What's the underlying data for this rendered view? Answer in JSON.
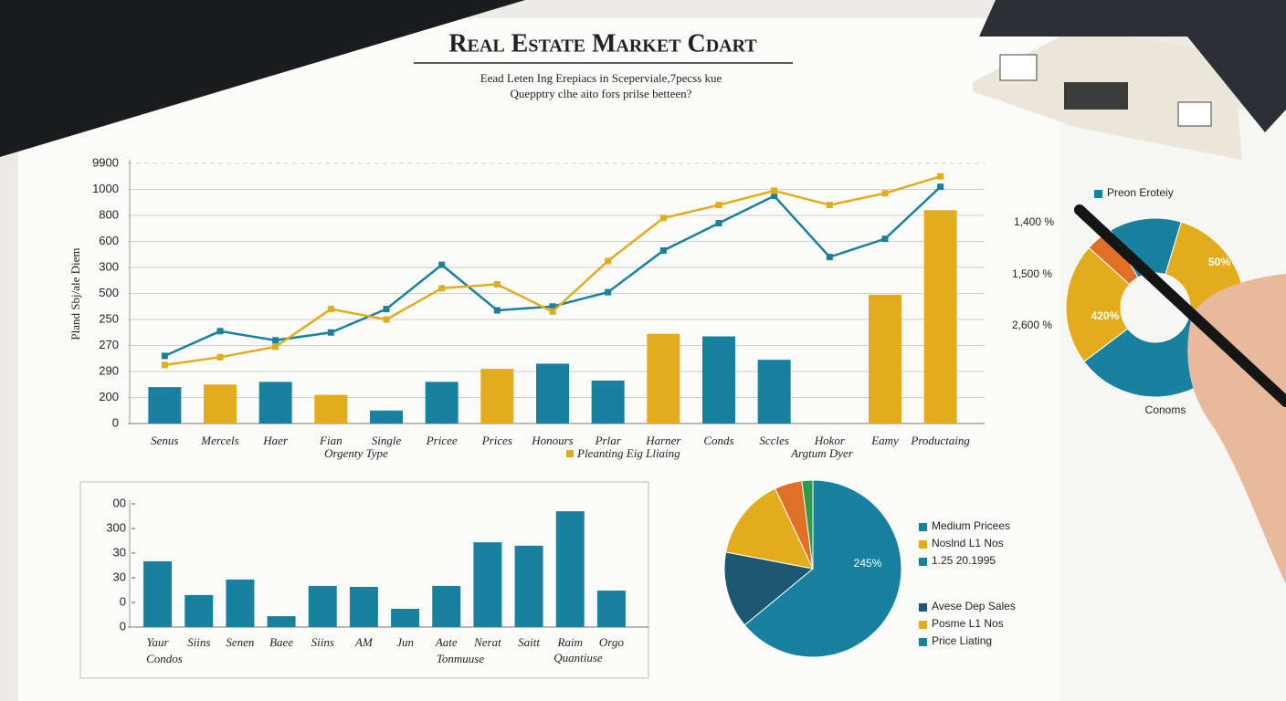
{
  "title": "Real Estate Market Cdart",
  "subtitle": [
    "Eead Leten Ing Erepiacs in Sceperviale,7pecss kue",
    "Quepptry clhe aito fors prilse betteen?"
  ],
  "chart_data": [
    {
      "type": "combo",
      "y_label": "Pland Sbj/ale Diem",
      "annotations": [
        "Orgenty Type",
        "Argtum Dyer"
      ],
      "categories": [
        "Senus",
        "Mercels",
        "Haer",
        "Fian",
        "Single",
        "Pricee",
        "Prices",
        "Honours",
        "Prlar",
        "Harner",
        "Conds",
        "Sccles",
        "Hokor",
        "Eamy",
        "Productaing"
      ],
      "series": [
        {
          "type": "bar",
          "color": "#17819f",
          "values": [
            140,
            null,
            160,
            null,
            50,
            160,
            null,
            230,
            165,
            null,
            335,
            245,
            null,
            null,
            null
          ]
        },
        {
          "type": "bar",
          "name": "Pleanting Eig Lliaing",
          "color": "#e2ac1c",
          "values": [
            null,
            150,
            null,
            110,
            null,
            null,
            210,
            null,
            null,
            345,
            null,
            null,
            null,
            495,
            820
          ]
        },
        {
          "type": "line",
          "color": "#17819f",
          "values": [
            260,
            355,
            320,
            350,
            440,
            610,
            435,
            450,
            505,
            665,
            770,
            875,
            640,
            710,
            910
          ]
        },
        {
          "type": "line",
          "color": "#e2ac1c",
          "values": [
            225,
            255,
            295,
            440,
            400,
            520,
            535,
            430,
            625,
            790,
            840,
            895,
            840,
            885,
            950
          ]
        }
      ],
      "ylim": [
        0,
        1000
      ],
      "yticks": [
        0,
        {
          "value": 100,
          "label": "200"
        },
        {
          "value": 200,
          "label": "290"
        },
        {
          "value": 300,
          "label": "270"
        },
        {
          "value": 400,
          "label": "250"
        },
        {
          "value": 500,
          "label": "500"
        },
        {
          "value": 600,
          "label": "300"
        },
        {
          "value": 700,
          "label": "600"
        },
        {
          "value": 800,
          "label": "800"
        },
        {
          "value": 900,
          "label": "1000"
        },
        {
          "value": 1000,
          "label": "9900"
        }
      ],
      "grid": true
    },
    {
      "type": "bar",
      "annotations": [
        "Condos",
        "Tonmuuse",
        "Quantiuse"
      ],
      "categories": [
        "Yaur",
        "Siins",
        "Senen",
        "Baee",
        "Siins",
        "AM",
        "Jun",
        "Aate",
        "Nerat",
        "Saitt",
        "Raim",
        "Orgo"
      ],
      "values": [
        2.67,
        1.3,
        1.93,
        0.44,
        1.67,
        1.63,
        0.74,
        1.67,
        3.44,
        3.3,
        4.7,
        1.48
      ],
      "color": "#17819f",
      "ylim": [
        0,
        5
      ],
      "yticks": [
        0,
        {
          "value": 1,
          "label": "0"
        },
        {
          "value": 2,
          "label": "30"
        },
        {
          "value": 3,
          "label": "30"
        },
        {
          "value": 4,
          "label": "300"
        },
        {
          "value": 5,
          "label": "00"
        }
      ]
    },
    {
      "type": "pie",
      "values": [
        64,
        14,
        15,
        5,
        2
      ],
      "colors": [
        "#17819f",
        "#1d5873",
        "#e2ac1c",
        "#e07028",
        "#2f9a4a"
      ],
      "start_angle": 0,
      "annotations": [
        "245%"
      ],
      "legend": [
        {
          "label": "Medium Pricees",
          "color": "#17819f"
        },
        {
          "label": "Noslnd L1 Nos",
          "color": "#e2ac1c"
        },
        {
          "label": "1.25 20.1995",
          "color": "#17819f"
        },
        {
          "label": "Avese Dep Sales",
          "color": "#1d5873"
        },
        {
          "label": "Posme L1 Nos",
          "color": "#e2ac1c"
        },
        {
          "label": "Price Liating",
          "color": "#17819f"
        }
      ]
    },
    {
      "type": "donut",
      "values": [
        13,
        25,
        35,
        22,
        5
      ],
      "colors": [
        "#17819f",
        "#e2ac1c",
        "#17819f",
        "#e2ac1c",
        "#e07028"
      ],
      "start_angle": -30,
      "annotations": [
        "1,400 %",
        "1,500 %",
        "2,600 %",
        "Conoms",
        "50%",
        "420%"
      ],
      "legend": [
        {
          "label": "Preon Eroteiy",
          "color": "#17819f"
        }
      ]
    }
  ]
}
